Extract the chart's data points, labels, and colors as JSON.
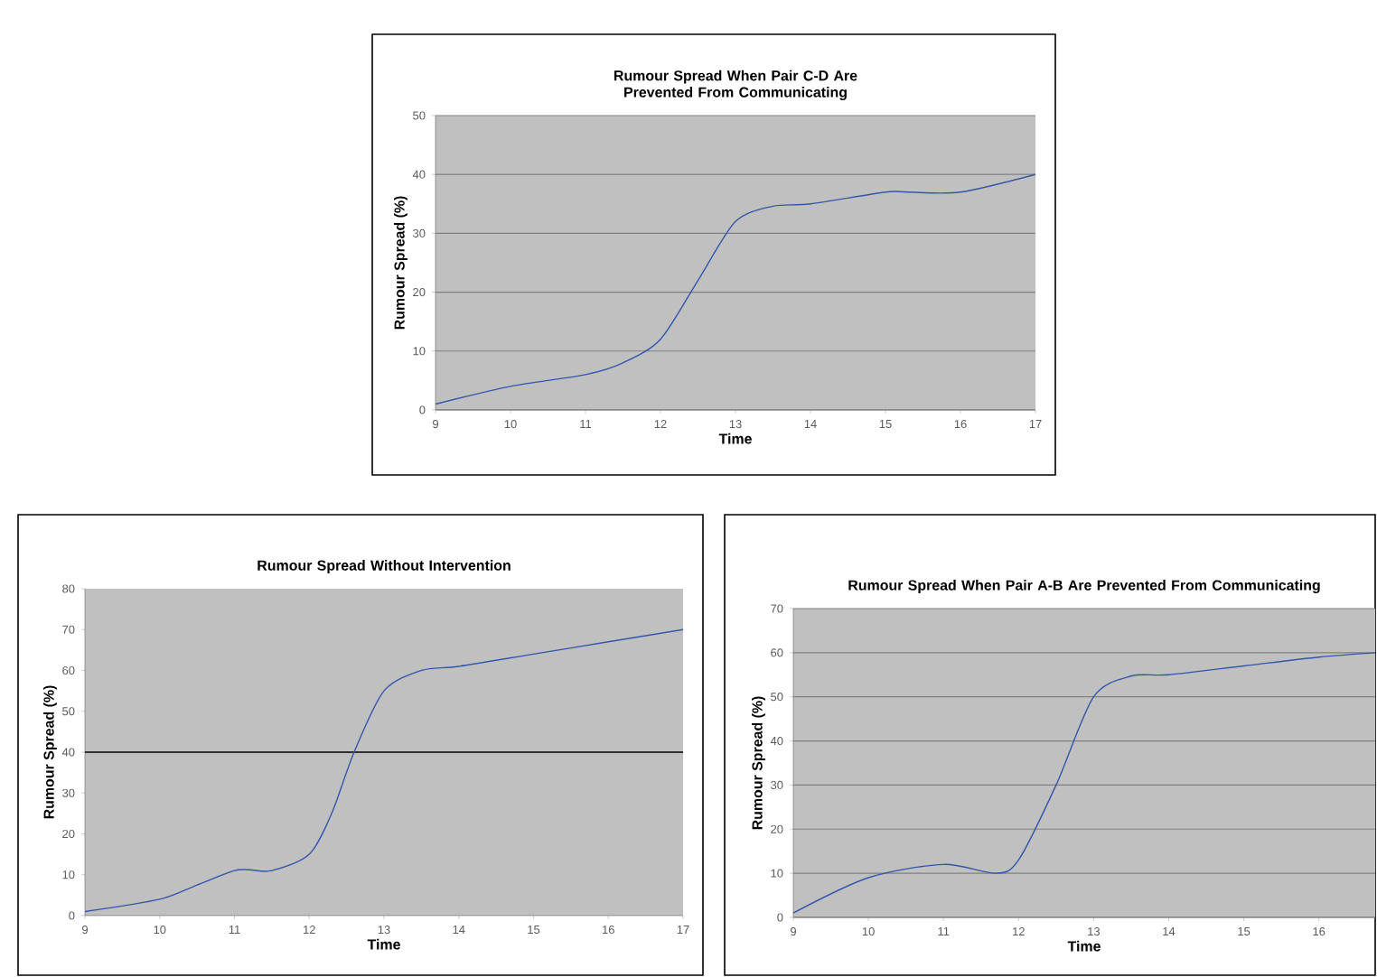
{
  "chart_data": [
    {
      "type": "line",
      "title": "Rumour Spread When Pair C-D Are Prevented From Communicating",
      "xlabel": "Time",
      "ylabel": "Rumour Spread (%)",
      "series": [
        {
          "color": "#3355aa",
          "x": [
            9,
            10,
            11,
            11.5,
            12,
            12.5,
            13,
            13.5,
            14,
            15,
            15.3,
            16,
            17
          ],
          "values": [
            1,
            4,
            6,
            8,
            12,
            22,
            32,
            34.6,
            35,
            37,
            37,
            37,
            40
          ]
        }
      ],
      "xlim": [
        9,
        17
      ],
      "xticks": [
        9,
        10,
        11,
        12,
        13,
        14,
        15,
        16,
        17
      ],
      "ylim": [
        0,
        50
      ],
      "yticks": [
        0,
        10,
        20,
        30,
        40,
        50
      ],
      "grid": "y",
      "marker": "none",
      "line_style": "solid"
    },
    {
      "type": "line",
      "title": "Rumour Spread Without Intervention",
      "xlabel": "Time",
      "ylabel": "Rumour Spread (%)",
      "series": [
        {
          "color": "#3355aa",
          "x": [
            9,
            10,
            10.5,
            11,
            11.2,
            11.5,
            12,
            12.3,
            12.6,
            13,
            13.5,
            14,
            15,
            16,
            17
          ],
          "values": [
            1,
            4,
            7.5,
            11,
            11.2,
            11,
            15,
            25,
            40,
            55,
            60,
            61,
            64,
            67,
            70
          ]
        }
      ],
      "xlim": [
        9,
        17
      ],
      "xticks": [
        9,
        10,
        11,
        12,
        13,
        14,
        15,
        16,
        17
      ],
      "ylim": [
        0,
        80
      ],
      "yticks": [
        0,
        10,
        20,
        30,
        40,
        50,
        60,
        70,
        80
      ],
      "grid": false,
      "marker": "none",
      "line_style": "solid",
      "ref_lines": [
        {
          "axis": "y",
          "value": 40,
          "color": "#000000"
        }
      ]
    },
    {
      "type": "line",
      "title": "Rumour Spread When Pair A-B Are Prevented From Communicating",
      "xlabel": "Time",
      "ylabel": "Rumour Spread (%)",
      "series": [
        {
          "color": "#3355aa",
          "x": [
            9,
            10,
            11,
            11.7,
            12,
            12.5,
            13,
            13.5,
            14,
            15,
            16,
            16.75
          ],
          "values": [
            1,
            9,
            12,
            10,
            13,
            30,
            50,
            54.7,
            55,
            57,
            59,
            60
          ]
        }
      ],
      "xlim": [
        9,
        16.75
      ],
      "xticks": [
        9,
        10,
        11,
        12,
        13,
        14,
        15,
        16
      ],
      "ylim": [
        0,
        70
      ],
      "yticks": [
        0,
        10,
        20,
        30,
        40,
        50,
        60,
        70
      ],
      "grid": "y",
      "marker": "none",
      "line_style": "solid"
    }
  ]
}
